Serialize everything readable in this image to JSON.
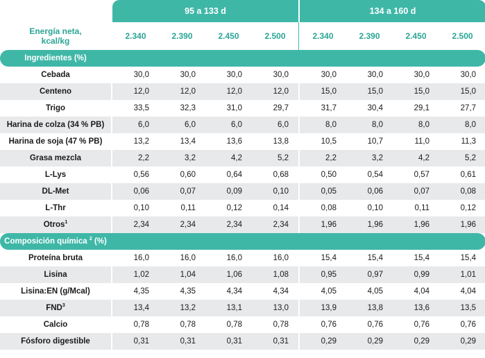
{
  "header": {
    "period_1": "95 a 133 d",
    "period_2": "134 a 160 d"
  },
  "energy": {
    "label_line1": "Energía neta,",
    "label_line2": "kcal/kg",
    "values": [
      "2.340",
      "2.390",
      "2.450",
      "2.500",
      "2.340",
      "2.390",
      "2.450",
      "2.500"
    ]
  },
  "sections": [
    {
      "title": "Ingredientes (%)",
      "title_sup": "",
      "title_suffix": "",
      "rows": [
        {
          "label": "Cebada",
          "sup": "",
          "values": [
            "30,0",
            "30,0",
            "30,0",
            "30,0",
            "30,0",
            "30,0",
            "30,0",
            "30,0"
          ]
        },
        {
          "label": "Centeno",
          "sup": "",
          "values": [
            "12,0",
            "12,0",
            "12,0",
            "12,0",
            "15,0",
            "15,0",
            "15,0",
            "15,0"
          ]
        },
        {
          "label": "Trigo",
          "sup": "",
          "values": [
            "33,5",
            "32,3",
            "31,0",
            "29,7",
            "31,7",
            "30,4",
            "29,1",
            "27,7"
          ]
        },
        {
          "label": "Harina de colza (34 % PB)",
          "sup": "",
          "values": [
            "6,0",
            "6,0",
            "6,0",
            "6,0",
            "8,0",
            "8,0",
            "8,0",
            "8,0"
          ]
        },
        {
          "label": "Harina de soja (47 % PB)",
          "sup": "",
          "values": [
            "13,2",
            "13,4",
            "13,6",
            "13,8",
            "10,5",
            "10,7",
            "11,0",
            "11,3"
          ]
        },
        {
          "label": "Grasa mezcla",
          "sup": "",
          "values": [
            "2,2",
            "3,2",
            "4,2",
            "5,2",
            "2,2",
            "3,2",
            "4,2",
            "5,2"
          ]
        },
        {
          "label": "L-Lys",
          "sup": "",
          "values": [
            "0,56",
            "0,60",
            "0,64",
            "0,68",
            "0,50",
            "0,54",
            "0,57",
            "0,61"
          ]
        },
        {
          "label": "DL-Met",
          "sup": "",
          "values": [
            "0,06",
            "0,07",
            "0,09",
            "0,10",
            "0,05",
            "0,06",
            "0,07",
            "0,08"
          ]
        },
        {
          "label": "L-Thr",
          "sup": "",
          "values": [
            "0,10",
            "0,11",
            "0,12",
            "0,14",
            "0,08",
            "0,10",
            "0,11",
            "0,12"
          ]
        },
        {
          "label": "Otros",
          "sup": "1",
          "values": [
            "2,34",
            "2,34",
            "2,34",
            "2,34",
            "1,96",
            "1,96",
            "1,96",
            "1,96"
          ]
        }
      ]
    },
    {
      "title": "Composición química",
      "title_sup": "2",
      "title_suffix": " (%)",
      "rows": [
        {
          "label": "Proteína bruta",
          "sup": "",
          "values": [
            "16,0",
            "16,0",
            "16,0",
            "16,0",
            "15,4",
            "15,4",
            "15,4",
            "15,4"
          ]
        },
        {
          "label": "Lisina",
          "sup": "",
          "values": [
            "1,02",
            "1,04",
            "1,06",
            "1,08",
            "0,95",
            "0,97",
            "0,99",
            "1,01"
          ]
        },
        {
          "label": "Lisina:EN (g/Mcal)",
          "sup": "",
          "values": [
            "4,35",
            "4,35",
            "4,34",
            "4,34",
            "4,05",
            "4,05",
            "4,04",
            "4,04"
          ]
        },
        {
          "label": "FND",
          "sup": "3",
          "values": [
            "13,4",
            "13,2",
            "13,1",
            "13,0",
            "13,9",
            "13,8",
            "13,6",
            "13,5"
          ]
        },
        {
          "label": "Calcio",
          "sup": "",
          "values": [
            "0,78",
            "0,78",
            "0,78",
            "0,78",
            "0,76",
            "0,76",
            "0,76",
            "0,76"
          ]
        },
        {
          "label": "Fósforo digestible",
          "sup": "",
          "values": [
            "0,31",
            "0,31",
            "0,31",
            "0,31",
            "0,29",
            "0,29",
            "0,29",
            "0,29"
          ]
        }
      ]
    }
  ]
}
